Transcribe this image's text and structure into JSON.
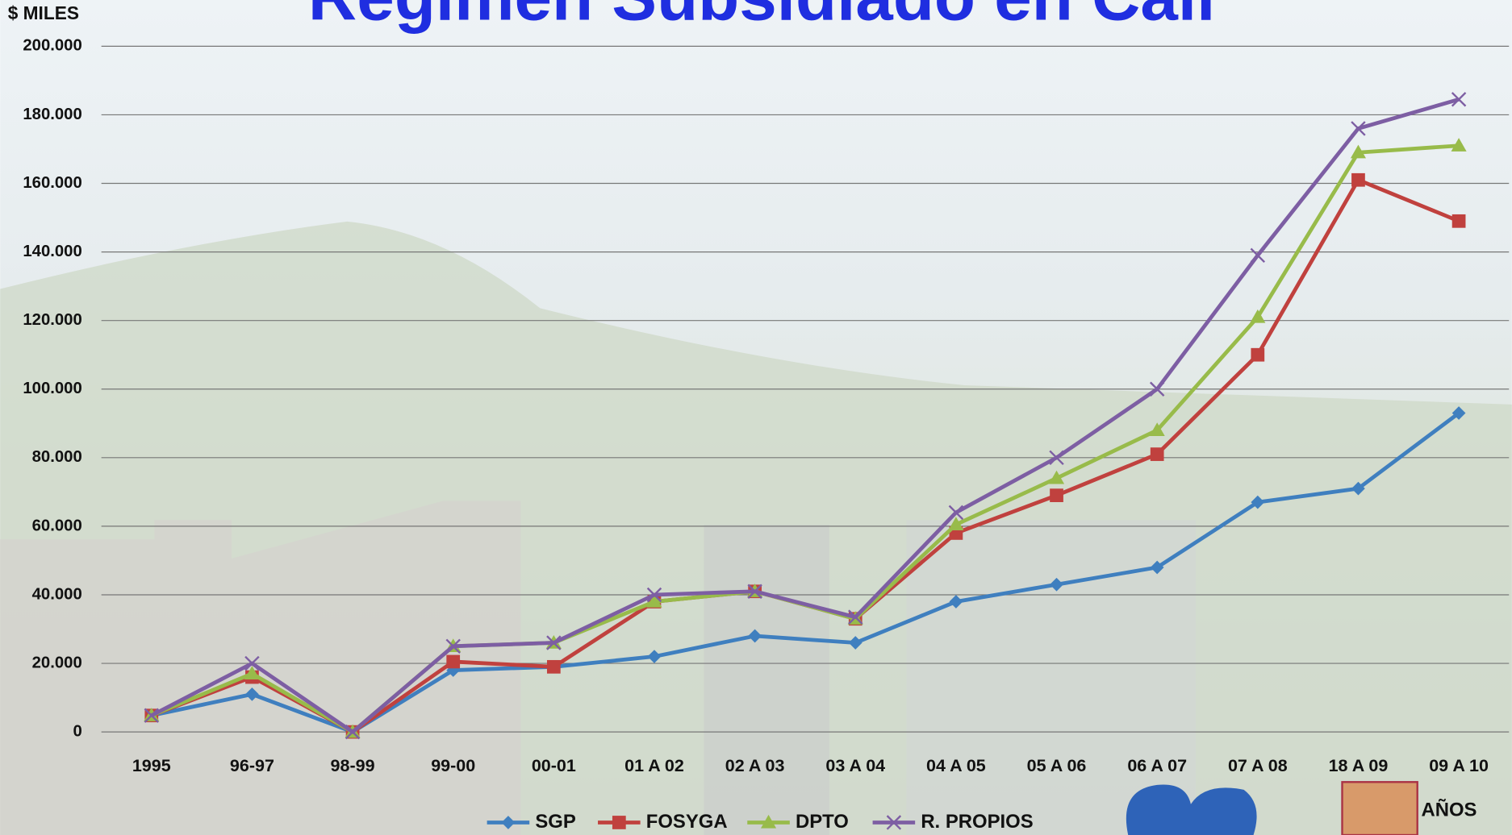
{
  "chart_data": {
    "type": "line",
    "title": "Regimen Subsidiado en Cali",
    "y_label": "$ MILES",
    "x_label": "AÑOS",
    "categories": [
      "1995",
      "96-97",
      "98-99",
      "99-00",
      "00-01",
      "01 A 02",
      "02 A 03",
      "03 A 04",
      "04 A 05",
      "05 A 06",
      "06 A 07",
      "07 A 08",
      "18 A 09",
      "09 A 10"
    ],
    "series": [
      {
        "name": "SGP",
        "color": "#3f7fbf",
        "marker": "diamond",
        "values": [
          4800,
          11000,
          0,
          18000,
          19000,
          22000,
          28000,
          26000,
          38000,
          43000,
          48000,
          67000,
          71000,
          93000
        ]
      },
      {
        "name": "FOSYGA",
        "color": "#c0413e",
        "marker": "square",
        "values": [
          4800,
          16000,
          0,
          20500,
          19000,
          38000,
          41000,
          33000,
          58000,
          69000,
          81000,
          110000,
          161000,
          149000
        ]
      },
      {
        "name": "DPTO",
        "color": "#98bb4a",
        "marker": "triangle",
        "values": [
          4800,
          17000,
          0,
          25000,
          26000,
          38000,
          41000,
          33000,
          60500,
          74000,
          88000,
          121000,
          169000,
          171000
        ]
      },
      {
        "name": "R. PROPIOS",
        "color": "#7d5ea3",
        "marker": "x",
        "values": [
          4800,
          20000,
          0,
          25000,
          26000,
          40000,
          41000,
          33500,
          64000,
          80000,
          100000,
          139000,
          176000,
          184500
        ]
      }
    ],
    "ylim": [
      0,
      200000
    ],
    "yticks": [
      0,
      {
        "value": 20000,
        "label": "20.000"
      },
      {
        "value": 40000,
        "label": "40.000"
      },
      {
        "value": 60000,
        "label": "60.000"
      },
      {
        "value": 80000,
        "label": "80.000"
      },
      {
        "value": 100000,
        "label": "100.000"
      },
      {
        "value": 120000,
        "label": "120.000"
      },
      {
        "value": 140000,
        "label": "140.000"
      },
      {
        "value": 160000,
        "label": "160.000"
      },
      {
        "value": 180000,
        "label": "180.000"
      },
      {
        "value": 200000,
        "label": "200.000"
      }
    ],
    "grid": true,
    "legend": "bottom"
  }
}
